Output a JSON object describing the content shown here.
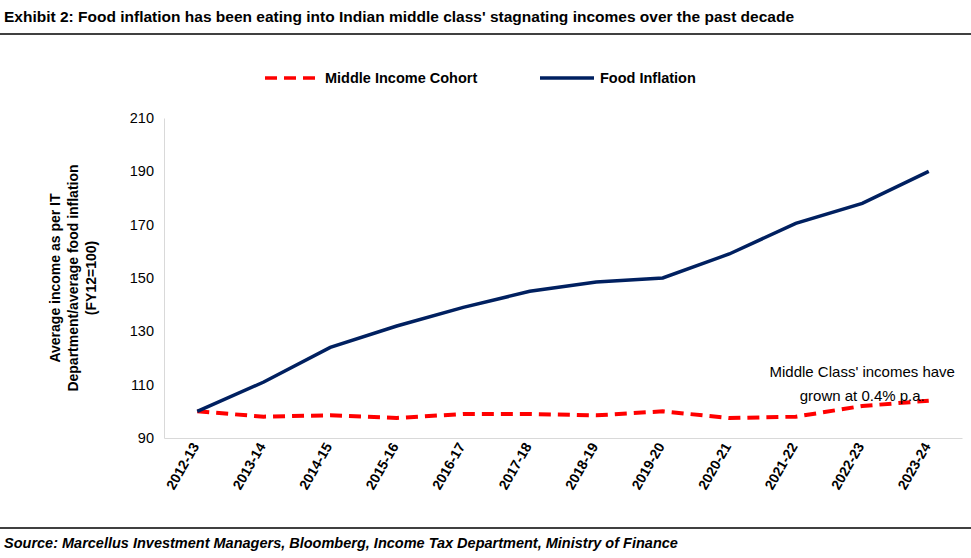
{
  "chart_data": {
    "type": "line",
    "title": "Exhibit 2: Food inflation has been eating into Indian middle class' stagnating incomes over the past decade",
    "ylabel": [
      "Average income as per IT",
      "Department/average food inflation",
      "(FY12=100)"
    ],
    "source": "Source: Marcellus Investment Managers, Bloomberg, Income Tax Department, Ministry of Finance",
    "annotations": [
      {
        "text": [
          "Middle Class' incomes have",
          "grown at 0.4% p.a."
        ],
        "x": 10,
        "y": 113
      }
    ],
    "categories": [
      "2012-13",
      "2013-14",
      "2014-15",
      "2015-16",
      "2016-17",
      "2017-18",
      "2018-19",
      "2019-20",
      "2020-21",
      "2021-22",
      "2022-23",
      "2023-24"
    ],
    "series": [
      {
        "name": "Middle Income Cohort",
        "color": "#ff0000",
        "line_style": "dashed",
        "values": [
          100,
          98,
          98.5,
          97.5,
          99,
          99,
          98.5,
          100,
          97.5,
          98,
          102,
          104
        ]
      },
      {
        "name": "Food Inflation",
        "color": "#002060",
        "line_style": "solid",
        "values": [
          100,
          111,
          124,
          132,
          139,
          145,
          148.5,
          150,
          159,
          170.5,
          178,
          190
        ]
      }
    ],
    "ylim": [
      90,
      210
    ],
    "yticks": [
      90,
      110,
      130,
      150,
      170,
      190,
      210
    ],
    "grid": false,
    "legend": "top"
  }
}
